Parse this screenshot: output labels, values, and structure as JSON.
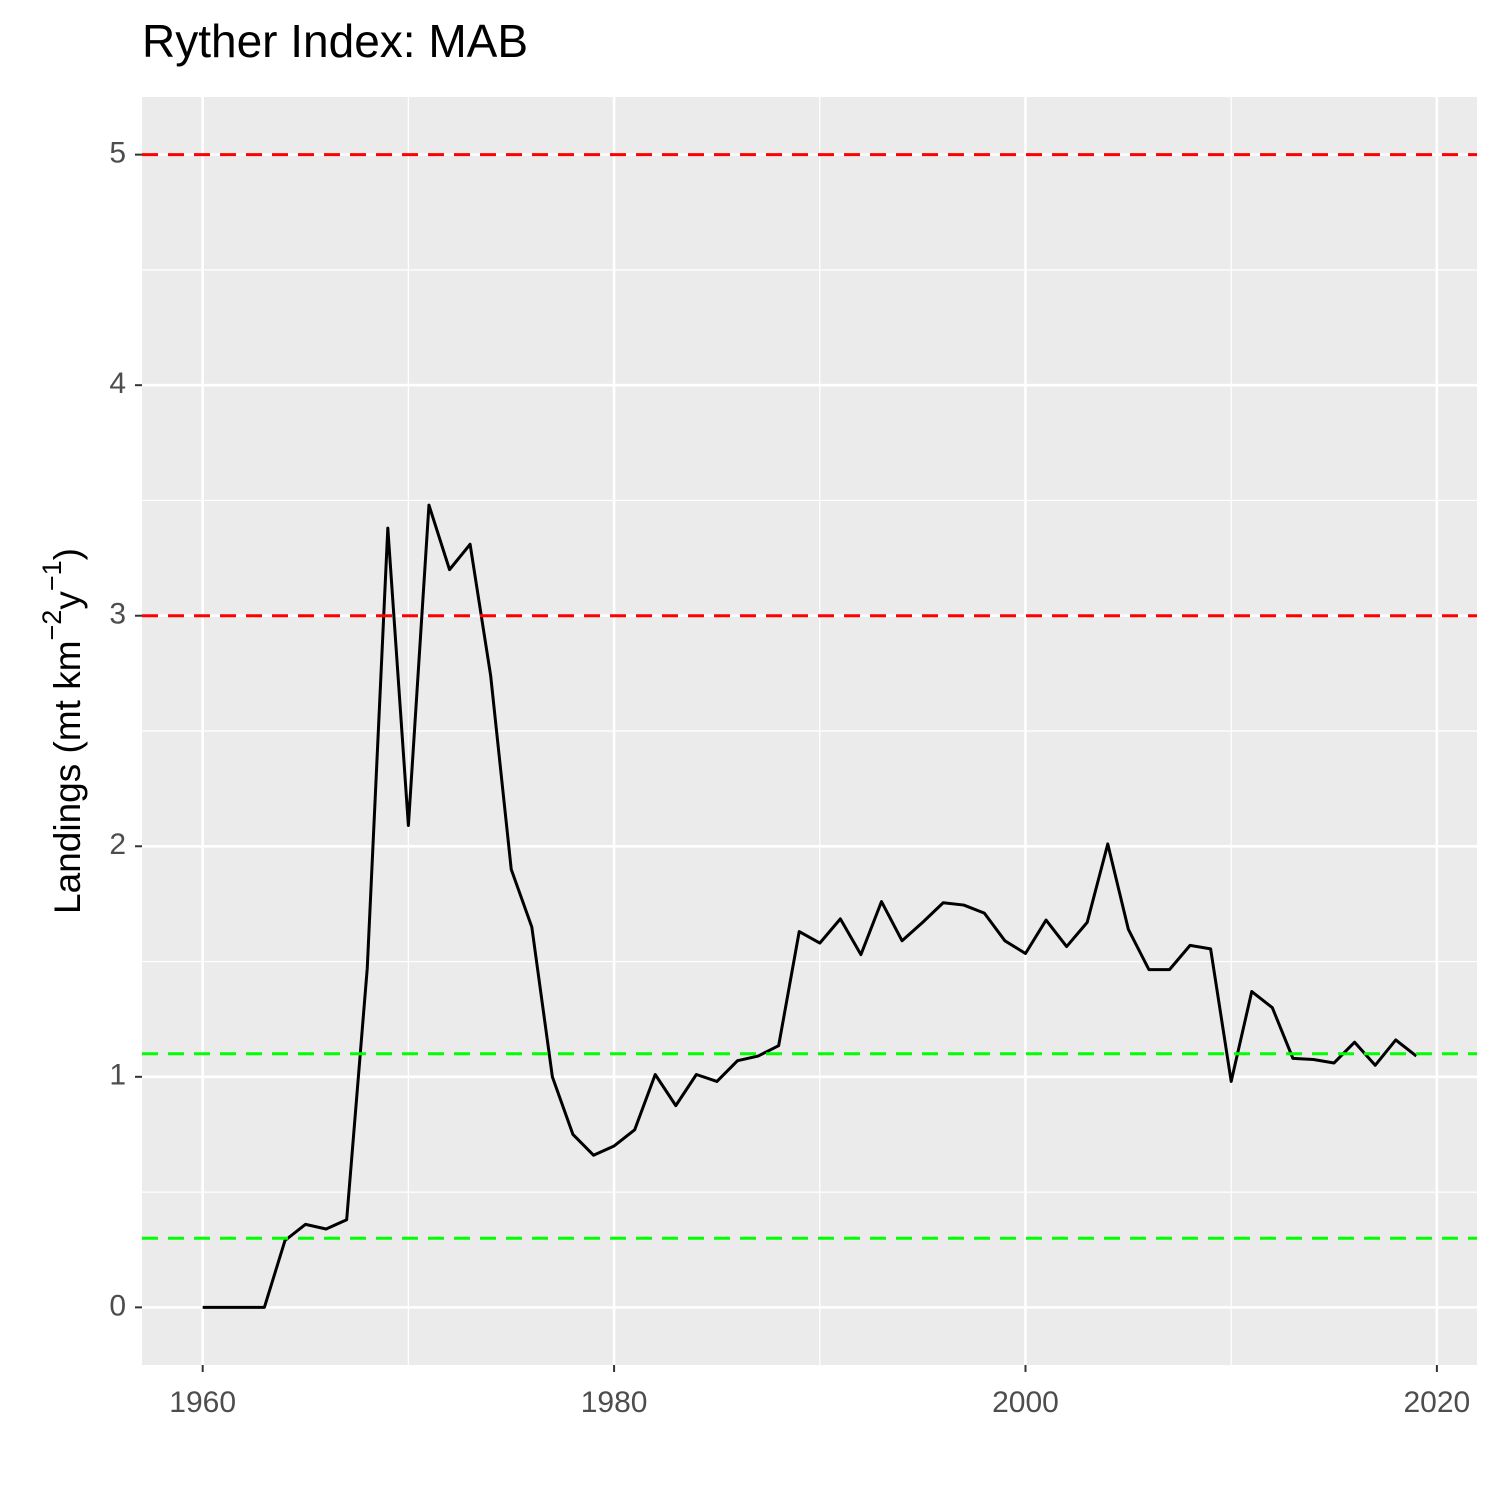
{
  "chart_data": {
    "type": "line",
    "title": "Ryther Index: MAB",
    "ylabel_parts": [
      "Landings (mt km",
      "−2",
      "y",
      "−1",
      ")"
    ],
    "x": [
      1960,
      1961,
      1962,
      1963,
      1964,
      1965,
      1966,
      1967,
      1968,
      1969,
      1970,
      1971,
      1972,
      1973,
      1974,
      1975,
      1976,
      1977,
      1978,
      1979,
      1980,
      1981,
      1982,
      1983,
      1984,
      1985,
      1986,
      1987,
      1988,
      1989,
      1990,
      1991,
      1992,
      1993,
      1994,
      1995,
      1996,
      1997,
      1998,
      1999,
      2000,
      2001,
      2002,
      2003,
      2004,
      2005,
      2006,
      2007,
      2008,
      2009,
      2010,
      2011,
      2012,
      2013,
      2014,
      2015,
      2016,
      2017,
      2018,
      2019
    ],
    "values": [
      0,
      0,
      0,
      0,
      0.29,
      0.36,
      0.34,
      0.38,
      1.47,
      3.38,
      2.09,
      3.48,
      3.2,
      3.31,
      2.74,
      1.9,
      1.65,
      1.0,
      0.75,
      0.66,
      0.7,
      0.77,
      1.01,
      0.875,
      1.01,
      0.98,
      1.07,
      1.09,
      1.135,
      1.63,
      1.58,
      1.685,
      1.53,
      1.76,
      1.59,
      1.67,
      1.755,
      1.745,
      1.71,
      1.59,
      1.535,
      1.68,
      1.565,
      1.67,
      2.01,
      1.64,
      1.465,
      1.465,
      1.57,
      1.555,
      0.98,
      1.37,
      1.3,
      1.08,
      1.075,
      1.06,
      1.15,
      1.05,
      1.16,
      1.09
    ],
    "color": "#000000",
    "hlines": [
      {
        "value": 5,
        "color": "#ff0000"
      },
      {
        "value": 3,
        "color": "#ff0000"
      },
      {
        "value": 1.1,
        "color": "#00ff00"
      },
      {
        "value": 0.3,
        "color": "#00ff00"
      }
    ],
    "xlim": [
      1957.05,
      2021.95
    ],
    "xticks": [
      1960,
      1980,
      2000,
      2020
    ],
    "ylim": [
      -0.25,
      5.25
    ],
    "yticks": [
      0,
      1,
      2,
      3,
      4,
      5
    ],
    "grid": true
  }
}
